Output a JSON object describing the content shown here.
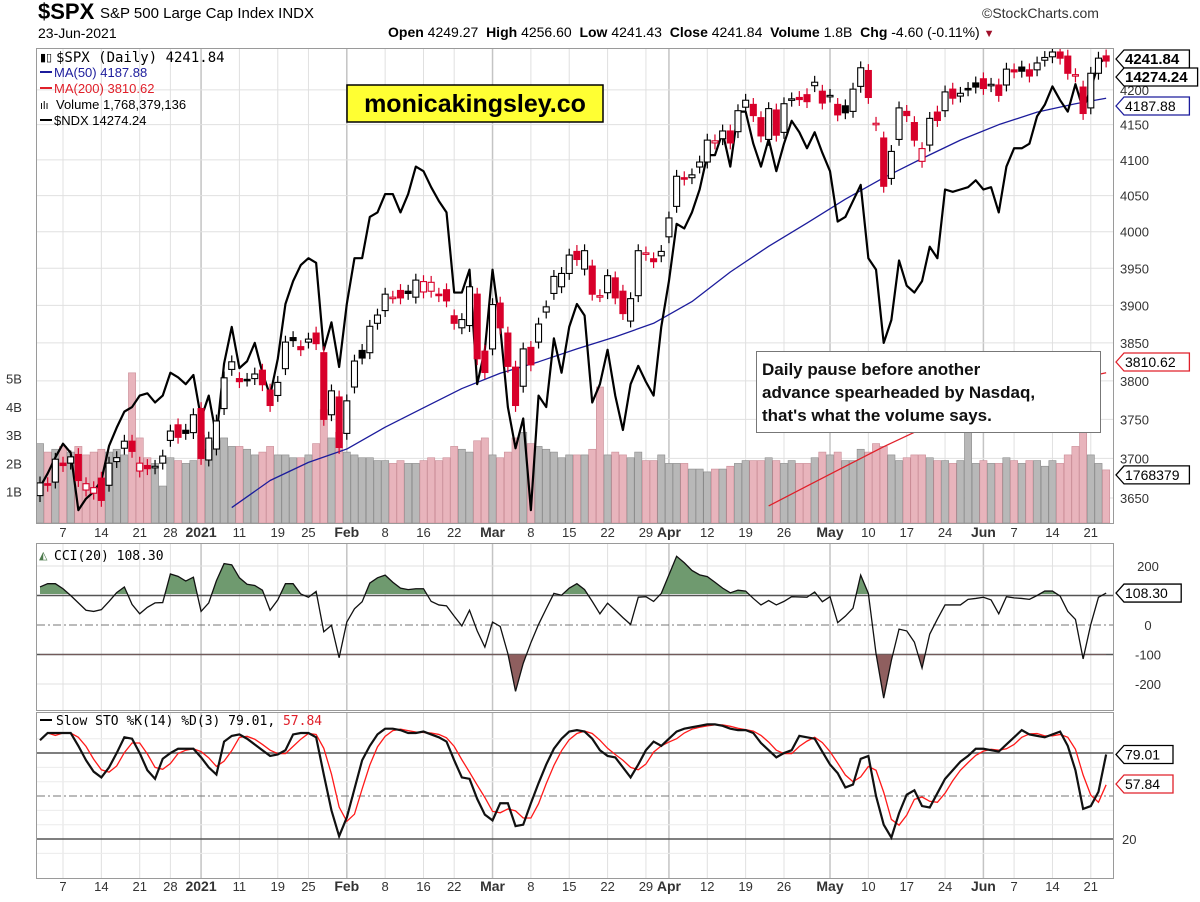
{
  "header": {
    "symbol": "$SPX",
    "name": "S&P 500 Large Cap Index  INDX",
    "date": "23-Jun-2021",
    "brand": "©StockCharts.com",
    "open_label": "Open",
    "open": "4249.27",
    "high_label": "High",
    "high": "4256.60",
    "low_label": "Low",
    "low": "4241.43",
    "close_label": "Close",
    "close": "4241.84",
    "volume_label": "Volume",
    "volume": "1.8B",
    "chg_label": "Chg",
    "chg": "-4.60 (-0.11%)"
  },
  "banner": "monicakingsley.co",
  "annotation": [
    "Daily pause before another",
    "advance spearheaded by Nasdaq,",
    "that's what the volume says."
  ],
  "legend": {
    "price": "$SPX (Daily) 4241.84",
    "ma50": "MA(50) 4187.88",
    "ma200": "MA(200) 3810.62",
    "volume": "Volume 1,768,379,136",
    "ndx": "$NDX 14274.24",
    "cci": "CCI(20) 108.30",
    "sto": "Slow STO %K(14) %D(3) 79.01, ",
    "sto_d": "57.84"
  },
  "colors": {
    "up": "#000000",
    "down": "#d8002a",
    "ma50": "#1c1c9c",
    "ma200": "#e0202a",
    "vol_up": "#b8b8b8",
    "vol_down": "#e8b4bc",
    "cci_pos": "#6f9a6f",
    "cci_neg": "#8f5f5f",
    "banner": "#ffff33"
  },
  "chart_data": [
    {
      "type": "candlestick",
      "title": "$SPX (Daily)",
      "x_start": "2020-12-02",
      "x_end": "2021-06-23",
      "x_ticks": [
        {
          "label": "7",
          "i": 3
        },
        {
          "label": "14",
          "i": 8
        },
        {
          "label": "21",
          "i": 13
        },
        {
          "label": "28",
          "i": 17
        },
        {
          "label": "2021",
          "i": 21,
          "bold": true
        },
        {
          "label": "11",
          "i": 26
        },
        {
          "label": "19",
          "i": 31
        },
        {
          "label": "25",
          "i": 35
        },
        {
          "label": "Feb",
          "i": 40,
          "bold": true
        },
        {
          "label": "8",
          "i": 45
        },
        {
          "label": "16",
          "i": 50
        },
        {
          "label": "22",
          "i": 54
        },
        {
          "label": "Mar",
          "i": 59,
          "bold": true
        },
        {
          "label": "8",
          "i": 64
        },
        {
          "label": "15",
          "i": 69
        },
        {
          "label": "22",
          "i": 74
        },
        {
          "label": "29",
          "i": 79
        },
        {
          "label": "Apr",
          "i": 82,
          "bold": true
        },
        {
          "label": "12",
          "i": 87
        },
        {
          "label": "19",
          "i": 92
        },
        {
          "label": "26",
          "i": 97
        },
        {
          "label": "May",
          "i": 103,
          "bold": true
        },
        {
          "label": "10",
          "i": 108
        },
        {
          "label": "17",
          "i": 113
        },
        {
          "label": "24",
          "i": 118
        },
        {
          "label": "Jun",
          "i": 123,
          "bold": true
        },
        {
          "label": "7",
          "i": 127
        },
        {
          "label": "14",
          "i": 132
        },
        {
          "label": "21",
          "i": 137
        }
      ],
      "y_scale": "log",
      "y_ticks": [
        "4200",
        "4150",
        "4100",
        "4050",
        "4000",
        "3950",
        "3900",
        "3850",
        "3800",
        "3750",
        "3700",
        "3650"
      ],
      "open": [
        3653,
        3668,
        3670,
        3694,
        3694,
        3705,
        3660,
        3656,
        3675,
        3666,
        3696,
        3713,
        3722,
        3684,
        3691,
        3688,
        3694,
        3723,
        3743,
        3736,
        3733,
        3764,
        3698,
        3712,
        3764,
        3815,
        3803,
        3802,
        3803,
        3814,
        3788,
        3781,
        3816,
        3857,
        3845,
        3851,
        3863,
        3837,
        3756,
        3779,
        3732,
        3792,
        3840,
        3837,
        3876,
        3893,
        3911,
        3920,
        3919,
        3911,
        3918,
        3919,
        3915,
        3921,
        3886,
        3870,
        3873,
        3915,
        3839,
        3842,
        3903,
        3863,
        3818,
        3793,
        3844,
        3851,
        3891,
        3916,
        3925,
        3943,
        3973,
        3949,
        3953,
        3913,
        3917,
        3937,
        3919,
        3879,
        3913,
        3969,
        3963,
        3967,
        3993,
        4035,
        4075,
        4075,
        4090,
        4097,
        4124,
        4130,
        4141,
        4140,
        4175,
        4179,
        4160,
        4129,
        4171,
        4139,
        4185,
        4189,
        4193,
        4206,
        4198,
        4191,
        4179,
        4177,
        4169,
        4205,
        4228,
        4150,
        4131,
        4074,
        4129,
        4169,
        4153,
        4098,
        4121,
        4168,
        4170,
        4201,
        4191,
        4202,
        4210,
        4216,
        4206,
        4207,
        4207,
        4229,
        4233,
        4229,
        4229,
        4243,
        4248,
        4255,
        4249,
        4220,
        4204,
        4174,
        4224,
        4249.27
      ],
      "close": [
        3669,
        3666,
        3699,
        3691,
        3702,
        3672,
        3668,
        3663,
        3647,
        3694,
        3701,
        3722,
        3709,
        3694,
        3687,
        3690,
        3703,
        3735,
        3727,
        3732,
        3756,
        3700,
        3726,
        3748,
        3804,
        3825,
        3799,
        3801,
        3809,
        3795,
        3768,
        3798,
        3851,
        3853,
        3841,
        3855,
        3849,
        3750,
        3787,
        3714,
        3774,
        3826,
        3830,
        3872,
        3887,
        3915,
        3911,
        3910,
        3916,
        3934,
        3932,
        3931,
        3913,
        3906,
        3876,
        3881,
        3925,
        3829,
        3811,
        3901,
        3870,
        3819,
        3768,
        3842,
        3821,
        3875,
        3898,
        3939,
        3943,
        3968,
        3962,
        3974,
        3915,
        3913,
        3940,
        3910,
        3889,
        3909,
        3974,
        3971,
        3959,
        3973,
        4019,
        4077,
        4073,
        4079,
        4097,
        4128,
        4127,
        4141,
        4124,
        4170,
        4185,
        4163,
        4134,
        4173,
        4135,
        4180,
        4187,
        4186,
        4183,
        4211,
        4181,
        4192,
        4164,
        4167,
        4201,
        4232,
        4189,
        4152,
        4063,
        4112,
        4174,
        4163,
        4128,
        4116,
        4159,
        4156,
        4197,
        4188,
        4195,
        4200,
        4204,
        4202,
        4208,
        4192,
        4230,
        4226,
        4227,
        4220,
        4239,
        4247,
        4255,
        4246,
        4224,
        4222,
        4166,
        4224,
        4246,
        4241.84
      ],
      "ma50": [
        [
          25,
          3638
        ],
        [
          30,
          3672
        ],
        [
          35,
          3695
        ],
        [
          40,
          3712
        ],
        [
          45,
          3740
        ],
        [
          50,
          3765
        ],
        [
          55,
          3790
        ],
        [
          60,
          3810
        ],
        [
          65,
          3825
        ],
        [
          70,
          3842
        ],
        [
          75,
          3858
        ],
        [
          80,
          3876
        ],
        [
          85,
          3905
        ],
        [
          90,
          3945
        ],
        [
          95,
          3980
        ],
        [
          100,
          4012
        ],
        [
          105,
          4045
        ],
        [
          110,
          4075
        ],
        [
          115,
          4102
        ],
        [
          120,
          4128
        ],
        [
          125,
          4150
        ],
        [
          130,
          4168
        ],
        [
          135,
          4180
        ],
        [
          139,
          4187.88
        ]
      ],
      "ma200": [
        [
          95,
          3640
        ],
        [
          100,
          3665
        ],
        [
          105,
          3690
        ],
        [
          110,
          3715
        ],
        [
          115,
          3738
        ],
        [
          120,
          3758
        ],
        [
          125,
          3775
        ],
        [
          130,
          3790
        ],
        [
          135,
          3802
        ],
        [
          139,
          3810.62
        ]
      ],
      "ndx": [
        12400,
        12460,
        12530,
        12590,
        12550,
        12300,
        12350,
        12380,
        12430,
        12580,
        12660,
        12730,
        12750,
        12800,
        12810,
        12770,
        12800,
        12900,
        12880,
        12850,
        12890,
        12700,
        12800,
        12620,
        12940,
        13100,
        12920,
        12950,
        13030,
        12900,
        12800,
        12960,
        13200,
        13300,
        13370,
        13400,
        13380,
        13000,
        13120,
        12925,
        13200,
        13400,
        13400,
        13580,
        13600,
        13680,
        13680,
        13600,
        13680,
        13800,
        13780,
        13710,
        13650,
        13600,
        13250,
        13250,
        13350,
        12850,
        13000,
        13350,
        13100,
        12750,
        12570,
        12700,
        12300,
        12800,
        12750,
        13050,
        12900,
        13100,
        13200,
        13150,
        12770,
        12850,
        13000,
        12800,
        12650,
        12850,
        12930,
        12860,
        12800,
        13100,
        13300,
        13550,
        13530,
        13600,
        13700,
        13850,
        13850,
        13950,
        13800,
        14040,
        14040,
        13900,
        13800,
        13920,
        13780,
        13900,
        14000,
        13950,
        13880,
        13950,
        13860,
        13780,
        13560,
        13580,
        13650,
        13720,
        13400,
        13350,
        13030,
        13130,
        13390,
        13280,
        13250,
        13300,
        13450,
        13400,
        13700,
        13690,
        13700,
        13710,
        13740,
        13700,
        13710,
        13600,
        13800,
        13880,
        13880,
        13900,
        14020,
        14070,
        14150,
        14090,
        14040,
        14160,
        14050,
        14140,
        14250,
        14274.24
      ],
      "volume_billions": [
        2.7,
        2.4,
        2.5,
        2.6,
        2.4,
        2.6,
        2.3,
        2.4,
        2.5,
        2.4,
        2.5,
        2.3,
        5.2,
        2.9,
        2.2,
        2.0,
        1.2,
        2.2,
        2.1,
        2.0,
        2.1,
        3.0,
        2.5,
        2.8,
        2.9,
        2.6,
        2.6,
        2.5,
        2.3,
        2.4,
        2.6,
        2.3,
        2.3,
        2.2,
        2.2,
        2.3,
        2.7,
        3.9,
        2.9,
        3.1,
        2.4,
        2.3,
        2.2,
        2.2,
        2.1,
        2.1,
        2.0,
        2.1,
        2.0,
        2.0,
        2.1,
        2.2,
        2.1,
        2.2,
        2.6,
        2.5,
        2.4,
        2.8,
        2.9,
        2.3,
        2.2,
        2.4,
        2.9,
        3.1,
        2.7,
        2.6,
        2.5,
        2.4,
        2.2,
        2.3,
        2.3,
        2.3,
        2.5,
        4.7,
        2.3,
        2.4,
        2.3,
        2.2,
        2.4,
        2.1,
        2.1,
        2.3,
        2.0,
        2.0,
        2.0,
        1.8,
        1.8,
        1.7,
        1.8,
        1.8,
        1.9,
        2.0,
        2.1,
        2.1,
        2.1,
        2.2,
        2.1,
        2.0,
        2.1,
        2.0,
        2.0,
        2.2,
        2.4,
        2.3,
        2.4,
        2.1,
        2.1,
        2.5,
        2.4,
        2.7,
        2.6,
        2.3,
        2.1,
        2.2,
        2.3,
        2.3,
        2.2,
        2.1,
        2.1,
        2.0,
        2.1,
        3.5,
        2.0,
        2.1,
        2.0,
        2.0,
        2.2,
        2.1,
        2.0,
        2.1,
        2.1,
        1.9,
        2.1,
        2.0,
        2.3,
        2.6,
        4.0,
        2.3,
        2.0,
        1.77
      ],
      "volume_ticks": [
        "5B",
        "4B",
        "3B",
        "2B",
        "1B"
      ],
      "value_tags": {
        "ndx": "14274.24",
        "close": "4241.84",
        "ma50": "4187.88",
        "ma200": "3810.62",
        "volume": "1768379"
      }
    },
    {
      "type": "line",
      "title": "CCI(20)",
      "y_ticks": [
        "200",
        "0",
        "-100",
        "-200"
      ],
      "levels": [
        100,
        0,
        -100
      ],
      "value_tag": "108.30",
      "values": [
        129,
        140,
        140,
        123,
        100,
        75,
        50,
        46,
        52,
        80,
        110,
        129,
        70,
        38,
        60,
        75,
        76,
        173,
        165,
        149,
        162,
        46,
        75,
        150,
        208,
        204,
        160,
        138,
        134,
        118,
        50,
        85,
        140,
        140,
        105,
        94,
        114,
        -23,
        -1,
        -111,
        10,
        55,
        79,
        142,
        160,
        169,
        145,
        125,
        120,
        123,
        123,
        80,
        68,
        65,
        30,
        -3,
        50,
        -20,
        -75,
        10,
        -5,
        -97,
        -225,
        -130,
        -60,
        2,
        55,
        107,
        101,
        125,
        140,
        120,
        80,
        38,
        74,
        50,
        25,
        2,
        94,
        96,
        80,
        107,
        170,
        233,
        211,
        185,
        170,
        164,
        145,
        125,
        109,
        118,
        115,
        90,
        68,
        83,
        68,
        80,
        96,
        95,
        94,
        112,
        79,
        96,
        8,
        30,
        57,
        169,
        107,
        -97,
        -248,
        -120,
        -14,
        -20,
        -58,
        -146,
        -31,
        20,
        68,
        68,
        68,
        87,
        90,
        94,
        85,
        38,
        96,
        92,
        90,
        87,
        100,
        115,
        115,
        98,
        46,
        19,
        -115,
        2,
        94,
        108.3
      ]
    },
    {
      "type": "line",
      "title": "Slow STO %K(14) %D(3)",
      "y_ticks": [
        "20"
      ],
      "levels": [
        80,
        50,
        20
      ],
      "value_tags": {
        "k": "79.01",
        "d": "57.84"
      },
      "k": [
        89,
        94,
        94,
        94,
        94,
        85,
        75,
        67,
        63,
        70,
        80,
        91,
        90,
        80,
        68,
        62,
        76,
        80,
        83,
        83,
        83,
        77,
        70,
        65,
        88,
        92,
        93,
        90,
        86,
        82,
        78,
        79,
        82,
        93,
        94,
        94,
        91,
        65,
        40,
        22,
        35,
        55,
        75,
        85,
        93,
        97,
        97,
        96,
        94,
        94,
        95,
        93,
        91,
        88,
        75,
        63,
        62,
        48,
        37,
        33,
        45,
        45,
        29,
        30,
        45,
        59,
        72,
        83,
        90,
        95,
        96,
        95,
        90,
        82,
        78,
        77,
        70,
        63,
        72,
        82,
        88,
        85,
        90,
        95,
        97,
        98,
        99,
        100,
        100,
        99,
        97,
        96,
        96,
        94,
        87,
        82,
        77,
        80,
        82,
        92,
        91,
        90,
        81,
        72,
        66,
        56,
        58,
        76,
        78,
        50,
        30,
        21,
        38,
        51,
        54,
        43,
        42,
        52,
        62,
        68,
        74,
        78,
        83,
        83,
        82,
        81,
        86,
        91,
        96,
        93,
        92,
        91,
        93,
        95,
        85,
        68,
        41,
        43,
        53,
        79.01
      ],
      "d_last": 57.84
    }
  ]
}
